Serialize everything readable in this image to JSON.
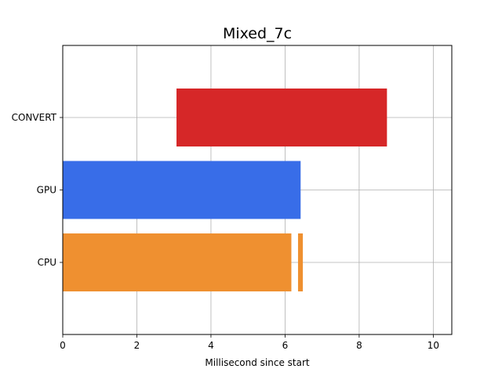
{
  "chart_data": {
    "type": "bar",
    "orientation": "horizontal",
    "title": "Mixed_7c",
    "xlabel": "Millisecond since start",
    "ylabel": "",
    "xlim": [
      0,
      10.5
    ],
    "x_ticks": [
      0,
      2,
      4,
      6,
      8,
      10
    ],
    "categories": [
      "CPU",
      "GPU",
      "CONVERT"
    ],
    "grid": true,
    "segments": [
      {
        "category": "CONVERT",
        "start": 3.07,
        "end": 8.75,
        "color": "#d62728"
      },
      {
        "category": "GPU",
        "start": 0.0,
        "end": 6.42,
        "color": "#386de8"
      },
      {
        "category": "CPU",
        "start": 0.0,
        "end": 6.17,
        "color": "#ef9030"
      },
      {
        "category": "CPU",
        "start": 6.35,
        "end": 6.48,
        "color": "#ef9030"
      }
    ]
  }
}
